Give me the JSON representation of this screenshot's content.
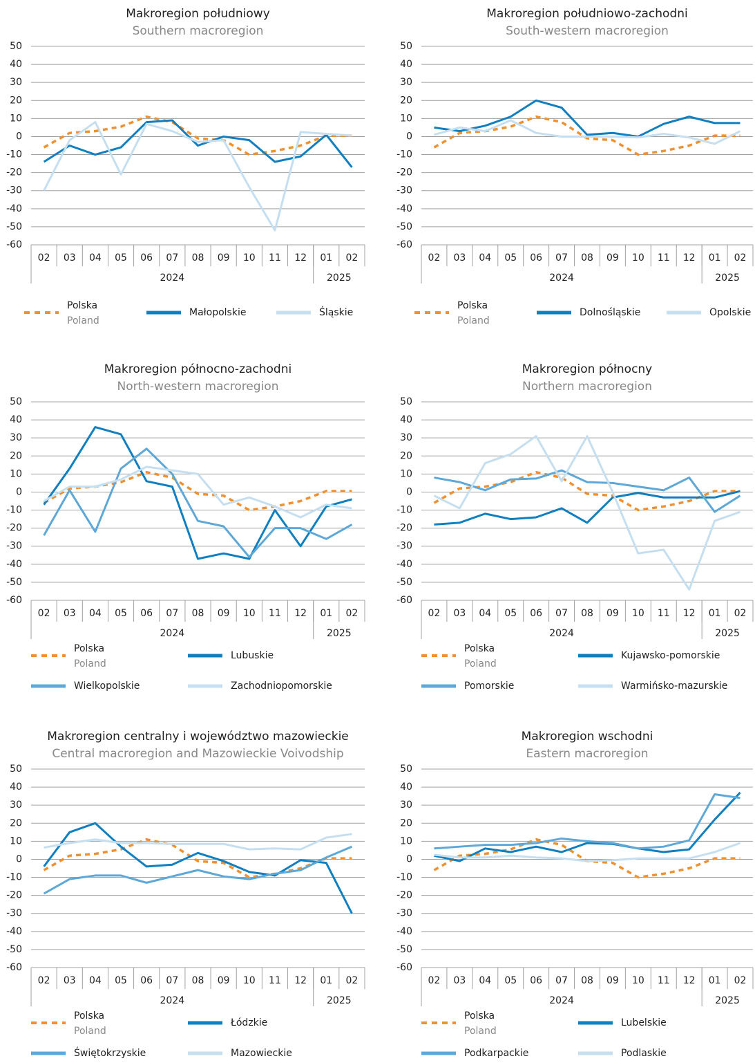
{
  "chart_data": [
    {
      "type": "line",
      "title": "Makroregion południowy",
      "subtitle": "Southern macroregion",
      "categories": [
        "02",
        "03",
        "04",
        "05",
        "06",
        "07",
        "08",
        "09",
        "10",
        "11",
        "12",
        "01",
        "02"
      ],
      "years": [
        {
          "label": "2024",
          "span": 11
        },
        {
          "label": "2025",
          "span": 2
        }
      ],
      "ylim": [
        -60,
        50
      ],
      "yticks": [
        50,
        40,
        30,
        20,
        10,
        0,
        -10,
        -20,
        -30,
        -40,
        -50,
        -60
      ],
      "grid": true,
      "series": [
        {
          "name": "Polska",
          "name_en": "Poland",
          "color": "#f0902f",
          "dashed": true,
          "values": [
            -6,
            2,
            3,
            5.5,
            11,
            8,
            -1,
            -2,
            -10,
            -8,
            -5,
            0.5,
            0.5
          ]
        },
        {
          "name": "Małopolskie",
          "color": "#0e7fc0",
          "values": [
            -14,
            -5,
            -10,
            -6,
            8,
            9,
            -5,
            0,
            -2,
            -14,
            -11,
            1,
            -17
          ]
        },
        {
          "name": "Śląskie",
          "color": "#c5dff0",
          "values": [
            -30,
            -2,
            8,
            -21,
            7,
            3,
            -3,
            -2,
            -28,
            -52,
            2.5,
            1.5,
            0.5
          ]
        }
      ]
    },
    {
      "type": "line",
      "title": "Makroregion południowo-zachodni",
      "subtitle": "South-western macroregion",
      "categories": [
        "02",
        "03",
        "04",
        "05",
        "06",
        "07",
        "08",
        "09",
        "10",
        "11",
        "12",
        "01",
        "02"
      ],
      "years": [
        {
          "label": "2024",
          "span": 11
        },
        {
          "label": "2025",
          "span": 2
        }
      ],
      "ylim": [
        -60,
        50
      ],
      "yticks": [
        50,
        40,
        30,
        20,
        10,
        0,
        -10,
        -20,
        -30,
        -40,
        -50,
        -60
      ],
      "grid": true,
      "series": [
        {
          "name": "Polska",
          "name_en": "Poland",
          "color": "#f0902f",
          "dashed": true,
          "values": [
            -6,
            2,
            3,
            5.5,
            11,
            8,
            -1,
            -2,
            -10,
            -8,
            -5,
            0.5,
            0.5
          ]
        },
        {
          "name": "Dolnośląskie",
          "color": "#0e7fc0",
          "values": [
            5,
            3,
            6,
            11,
            20,
            16,
            1,
            2,
            0,
            7,
            11,
            7.5,
            7.5
          ]
        },
        {
          "name": "Opolskie",
          "color": "#c5dff0",
          "values": [
            1,
            5,
            3,
            9,
            2,
            0,
            0,
            0,
            -0.5,
            1.5,
            -0.5,
            -4,
            3
          ]
        }
      ]
    },
    {
      "type": "line",
      "title": "Makroregion północno-zachodni",
      "subtitle": "North-western macroregion",
      "categories": [
        "02",
        "03",
        "04",
        "05",
        "06",
        "07",
        "08",
        "09",
        "10",
        "11",
        "12",
        "01",
        "02"
      ],
      "years": [
        {
          "label": "2024",
          "span": 11
        },
        {
          "label": "2025",
          "span": 2
        }
      ],
      "ylim": [
        -60,
        50
      ],
      "yticks": [
        50,
        40,
        30,
        20,
        10,
        0,
        -10,
        -20,
        -30,
        -40,
        -50,
        -60
      ],
      "grid": true,
      "series": [
        {
          "name": "Polska",
          "name_en": "Poland",
          "color": "#f0902f",
          "dashed": true,
          "values": [
            -6,
            2,
            3,
            5.5,
            11,
            8,
            -1,
            -2,
            -10,
            -8,
            -5,
            0.5,
            0.5
          ]
        },
        {
          "name": "Lubuskie",
          "color": "#0e7fc0",
          "values": [
            -7,
            13,
            36,
            32,
            6,
            3,
            -37,
            -34,
            -37,
            -10,
            -30,
            -8,
            -4
          ]
        },
        {
          "name": "Wielkopolskie",
          "color": "#5ea8d8",
          "values": [
            -24,
            1,
            -22,
            13,
            24,
            10,
            -16,
            -19,
            -36,
            -20,
            -20,
            -26,
            -18
          ]
        },
        {
          "name": "Zachodniopomorskie",
          "color": "#c5dff0",
          "values": [
            -5,
            3,
            3,
            7,
            14,
            12,
            10,
            -7,
            -3,
            -8,
            -14,
            -7,
            -9
          ]
        }
      ]
    },
    {
      "type": "line",
      "title": "Makroregion północny",
      "subtitle": "Northern macroregion",
      "categories": [
        "02",
        "03",
        "04",
        "05",
        "06",
        "07",
        "08",
        "09",
        "10",
        "11",
        "12",
        "01",
        "02"
      ],
      "years": [
        {
          "label": "2024",
          "span": 11
        },
        {
          "label": "2025",
          "span": 2
        }
      ],
      "ylim": [
        -60,
        50
      ],
      "yticks": [
        50,
        40,
        30,
        20,
        10,
        0,
        -10,
        -20,
        -30,
        -40,
        -50,
        -60
      ],
      "grid": true,
      "series": [
        {
          "name": "Polska",
          "name_en": "Poland",
          "color": "#f0902f",
          "dashed": true,
          "values": [
            -6,
            2,
            3,
            5.5,
            11,
            8,
            -1,
            -2,
            -10,
            -8,
            -5,
            0.5,
            0.5
          ]
        },
        {
          "name": "Kujawsko-pomorskie",
          "color": "#0e7fc0",
          "values": [
            -18,
            -17,
            -12,
            -15,
            -14,
            -9,
            -17,
            -3,
            -0.5,
            -3,
            -3,
            -3,
            0.5
          ]
        },
        {
          "name": "Pomorskie",
          "color": "#5ea8d8",
          "values": [
            8,
            5.5,
            1,
            7,
            7.5,
            12,
            5.5,
            5,
            3,
            1,
            8,
            -11,
            -2
          ]
        },
        {
          "name": "Warmińsko-mazurskie",
          "color": "#c5dff0",
          "values": [
            -2,
            -9,
            16,
            21,
            31,
            6,
            31,
            0,
            -34,
            -32,
            -54,
            -16,
            -11
          ]
        }
      ]
    },
    {
      "type": "line",
      "title": "Makroregion centralny i województwo mazowieckie",
      "subtitle": "Central macroregion and Mazowieckie Voivodship",
      "categories": [
        "02",
        "03",
        "04",
        "05",
        "06",
        "07",
        "08",
        "09",
        "10",
        "11",
        "12",
        "01",
        "02"
      ],
      "years": [
        {
          "label": "2024",
          "span": 11
        },
        {
          "label": "2025",
          "span": 2
        }
      ],
      "ylim": [
        -60,
        50
      ],
      "yticks": [
        50,
        40,
        30,
        20,
        10,
        0,
        -10,
        -20,
        -30,
        -40,
        -50,
        -60
      ],
      "grid": true,
      "series": [
        {
          "name": "Polska",
          "name_en": "Poland",
          "color": "#f0902f",
          "dashed": true,
          "values": [
            -6,
            2,
            3,
            5.5,
            11,
            8,
            -1,
            -2,
            -10,
            -8,
            -5,
            0.5,
            0.5
          ]
        },
        {
          "name": "Łódzkie",
          "color": "#0e7fc0",
          "values": [
            -4,
            15,
            20,
            7,
            -4,
            -3,
            3.5,
            -1,
            -7,
            -9,
            -0.5,
            -2,
            -30
          ]
        },
        {
          "name": "Świętokrzyskie",
          "color": "#5ea8d8",
          "values": [
            -19,
            -11,
            -9,
            -9,
            -13,
            -9.5,
            -6,
            -9.5,
            -11,
            -8,
            -6,
            1,
            7
          ]
        },
        {
          "name": "Mazowieckie",
          "color": "#c5dff0",
          "values": [
            6.5,
            9,
            11,
            9,
            9,
            8.5,
            8.5,
            8.5,
            5.5,
            6,
            5.5,
            12,
            14
          ]
        }
      ]
    },
    {
      "type": "line",
      "title": "Makroregion wschodni",
      "subtitle": "Eastern macroregion",
      "categories": [
        "02",
        "03",
        "04",
        "05",
        "06",
        "07",
        "08",
        "09",
        "10",
        "11",
        "12",
        "01",
        "02"
      ],
      "years": [
        {
          "label": "2024",
          "span": 11
        },
        {
          "label": "2025",
          "span": 2
        }
      ],
      "ylim": [
        -60,
        50
      ],
      "yticks": [
        50,
        40,
        30,
        20,
        10,
        0,
        -10,
        -20,
        -30,
        -40,
        -50,
        -60
      ],
      "grid": true,
      "series": [
        {
          "name": "Polska",
          "name_en": "Poland",
          "color": "#f0902f",
          "dashed": true,
          "values": [
            -6,
            2,
            3,
            5.5,
            11,
            8,
            -1,
            -2,
            -10,
            -8,
            -5,
            0.5,
            0.5
          ]
        },
        {
          "name": "Lubelskie",
          "color": "#0e7fc0",
          "values": [
            2,
            -1,
            6,
            4,
            7,
            4,
            9,
            8.5,
            6,
            4,
            5.5,
            22,
            37
          ]
        },
        {
          "name": "Podkarpackie",
          "color": "#5ea8d8",
          "values": [
            6,
            7,
            8,
            8,
            9,
            11.5,
            10,
            9,
            6,
            7,
            10.5,
            36,
            34
          ]
        },
        {
          "name": "Podlaskie",
          "color": "#c5dff0",
          "values": [
            2.5,
            1,
            1,
            2,
            1,
            0.5,
            -1,
            -0.5,
            0.5,
            0.5,
            0.5,
            4,
            9
          ]
        }
      ]
    }
  ]
}
